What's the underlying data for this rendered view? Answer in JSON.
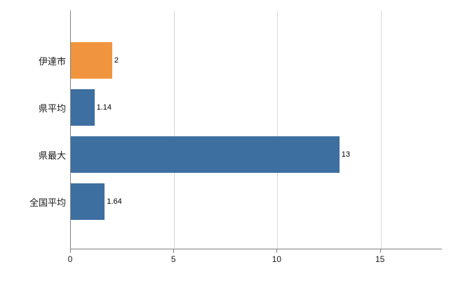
{
  "chart_data": {
    "type": "bar",
    "orientation": "horizontal",
    "title": "",
    "xlabel": "",
    "ylabel": "",
    "categories": [
      "伊達市",
      "県平均",
      "県最大",
      "全国平均"
    ],
    "values": [
      2,
      1.14,
      13,
      1.64
    ],
    "value_labels": [
      "2",
      "1.14",
      "13",
      "1.64"
    ],
    "bar_colors": [
      "#f0953e",
      "#3d6fa0",
      "#3d6fa0",
      "#3d6fa0"
    ],
    "xlim": [
      0,
      18
    ],
    "x_ticks": [
      0,
      5,
      10,
      15
    ],
    "x_tick_labels": [
      "0",
      "5",
      "10",
      "15"
    ],
    "grid": true,
    "legend": "none",
    "colors": {
      "background": "#ffffff",
      "gridline": "#d9d9d9",
      "axis": "#808080",
      "blue_bar": "#3d6fa0",
      "orange_bar": "#f0953e",
      "text": "#1a1a1a"
    }
  }
}
